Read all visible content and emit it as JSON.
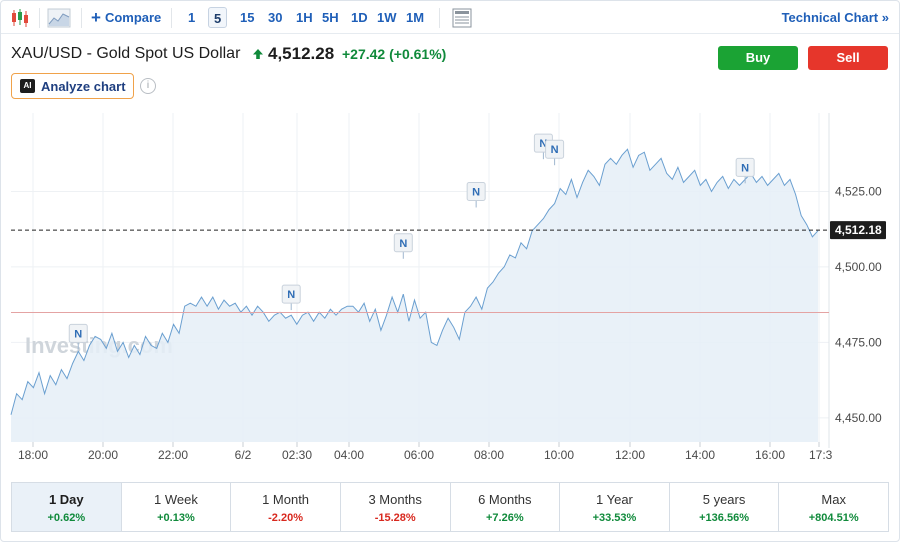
{
  "toolbar": {
    "compare_label": "Compare",
    "intervals": [
      "1",
      "5",
      "15",
      "30",
      "1H",
      "5H",
      "1D",
      "1W",
      "1M"
    ],
    "active_interval": "5",
    "technical_label": "Technical Chart",
    "icons": [
      "candlestick-icon",
      "area-chart-icon",
      "plus-icon",
      "layout-icon",
      "double-chevron-right-icon"
    ]
  },
  "header": {
    "title": "XAU/USD - Gold Spot US Dollar",
    "price": "4,512.28",
    "change": "+27.42",
    "change_pct": "(+0.61%)",
    "buy_label": "Buy",
    "sell_label": "Sell",
    "analyze_label": "Analyze chart",
    "ai_badge": "AI",
    "info_glyph": "i"
  },
  "watermark": "Investing.com",
  "colors": {
    "line": "#6a9fd0",
    "fill": "#e5eef7",
    "positive": "#108a3b",
    "negative": "#d8281e",
    "buy": "#1ba334",
    "sell": "#e6362b",
    "ref_line": "#e4a3a3"
  },
  "chart_data": {
    "type": "area",
    "x_ticks": [
      "18:00",
      "20:00",
      "22:00",
      "6/2",
      "02:30",
      "04:00",
      "06:00",
      "08:00",
      "10:00",
      "12:00",
      "14:00",
      "16:00",
      "17:3"
    ],
    "y_ticks": [
      4450,
      4475,
      4500,
      4525
    ],
    "y_tick_labels": [
      "4,450.00",
      "4,475.00",
      "4,500.00",
      "4,525.00"
    ],
    "ylim": [
      4442,
      4551
    ],
    "current_value": 4512.18,
    "current_label": "4,512.18",
    "reference_value": 4484.9,
    "series": [
      {
        "values": [
          4451,
          4458,
          4456,
          4462,
          4460,
          4465,
          4458,
          4464,
          4461,
          4466,
          4463,
          4468,
          4472,
          4469,
          4474,
          4477,
          4476,
          4473,
          4478,
          4472,
          4475,
          4470,
          4474,
          4471,
          4477,
          4474,
          4473,
          4478,
          4475,
          4481,
          4478,
          4487,
          4488,
          4487,
          4490,
          4487,
          4490,
          4486,
          4489,
          4487,
          4488,
          4485,
          4487,
          4484,
          4487,
          4485,
          4482,
          4484,
          4485,
          4483,
          4484,
          4481,
          4484,
          4485,
          4482,
          4485,
          4483,
          4486,
          4484,
          4486,
          4487,
          4487,
          4485,
          4488,
          4482,
          4486,
          4479,
          4484,
          4490,
          4485,
          4491,
          4482,
          4489,
          4483,
          4485,
          4475,
          4474,
          4479,
          4483,
          4480,
          4476,
          4485,
          4487,
          4490,
          4486,
          4493,
          4495,
          4498,
          4500,
          4504,
          4503,
          4508,
          4506,
          4512,
          4514,
          4516,
          4519,
          4521,
          4526,
          4524,
          4529,
          4523,
          4528,
          4532,
          4530,
          4527,
          4534,
          4536,
          4534,
          4537,
          4539,
          4533,
          4537,
          4538,
          4532,
          4534,
          4536,
          4531,
          4529,
          4533,
          4528,
          4530,
          4532,
          4527,
          4529,
          4525,
          4528,
          4530,
          4526,
          4529,
          4527,
          4529,
          4531,
          4528,
          4530,
          4527,
          4529,
          4531,
          4527,
          4529,
          4524,
          4517,
          4514,
          4510,
          4512
        ]
      }
    ],
    "news_markers": [
      "N",
      "N",
      "N",
      "N",
      "N",
      "N",
      "N"
    ]
  },
  "ranges": [
    {
      "label": "1 Day",
      "value": "+0.62%",
      "dir": "pos",
      "active": true
    },
    {
      "label": "1 Week",
      "value": "+0.13%",
      "dir": "pos",
      "active": false
    },
    {
      "label": "1 Month",
      "value": "-2.20%",
      "dir": "neg",
      "active": false
    },
    {
      "label": "3 Months",
      "value": "-15.28%",
      "dir": "neg",
      "active": false
    },
    {
      "label": "6 Months",
      "value": "+7.26%",
      "dir": "pos",
      "active": false
    },
    {
      "label": "1 Year",
      "value": "+33.53%",
      "dir": "pos",
      "active": false
    },
    {
      "label": "5 years",
      "value": "+136.56%",
      "dir": "pos",
      "active": false
    },
    {
      "label": "Max",
      "value": "+804.51%",
      "dir": "pos",
      "active": false
    }
  ]
}
